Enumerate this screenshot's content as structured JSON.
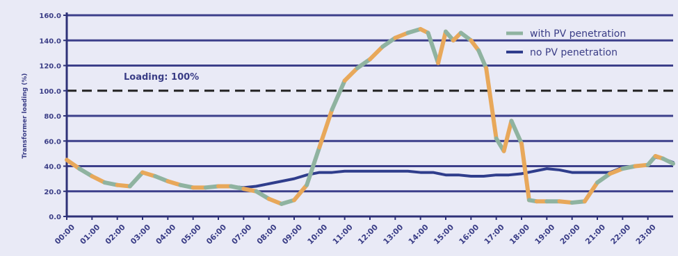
{
  "chart_data": {
    "type": "line",
    "title": "",
    "xlabel": "",
    "ylabel": "Transformer loading (%)",
    "ylim": [
      0,
      160
    ],
    "yticks": [
      "0.0",
      "20.0",
      "40.0",
      "60.0",
      "80.0",
      "100.0",
      "120.0",
      "140.0",
      "160.0"
    ],
    "xticks": [
      "00:00",
      "01:00",
      "02:00",
      "03:00",
      "04:00",
      "05:00",
      "06:00",
      "07:00",
      "08:00",
      "09:00",
      "10:00",
      "11:00",
      "12:00",
      "13:00",
      "14:00",
      "15:00",
      "16:00",
      "17:00",
      "18:00",
      "19:00",
      "20:00",
      "21:00",
      "22:00",
      "23:00"
    ],
    "grid": true,
    "legend_position": "top-right",
    "annotation": {
      "text": "Loading: 100%",
      "y": 100
    },
    "series": [
      {
        "name": "with PV penetration",
        "color": "#e8a85a",
        "color_alt": "#8fb3a0",
        "x": [
          0,
          0.5,
          1,
          1.5,
          2,
          2.5,
          3,
          3.5,
          4,
          4.5,
          5,
          5.5,
          6,
          6.5,
          7,
          7.5,
          8,
          8.5,
          9,
          9.5,
          10,
          10.5,
          11,
          11.5,
          12,
          12.5,
          13,
          13.5,
          14,
          14.3,
          14.7,
          15,
          15.3,
          15.6,
          16,
          16.3,
          16.6,
          17,
          17.3,
          17.6,
          18,
          18.3,
          18.6,
          19,
          19.5,
          20,
          20.5,
          21,
          21.5,
          22,
          22.5,
          23,
          23.3,
          23.6,
          24
        ],
        "y": [
          45,
          38,
          32,
          27,
          25,
          24,
          35,
          32,
          28,
          25,
          23,
          23,
          24,
          24,
          22,
          20,
          14,
          10,
          13,
          25,
          55,
          85,
          108,
          118,
          125,
          135,
          142,
          146,
          149,
          146,
          122,
          147,
          140,
          146,
          140,
          132,
          118,
          62,
          52,
          76,
          58,
          13,
          12,
          12,
          12,
          11,
          12,
          27,
          34,
          38,
          40,
          41,
          48,
          46,
          42
        ]
      },
      {
        "name": "no PV penetration",
        "color": "#2f3d8c",
        "x": [
          0,
          0.5,
          1,
          1.5,
          2,
          2.5,
          3,
          3.5,
          4,
          4.5,
          5,
          5.5,
          6,
          6.5,
          7,
          7.5,
          8,
          8.5,
          9,
          9.5,
          10,
          10.5,
          11,
          11.5,
          12,
          12.5,
          13,
          13.5,
          14,
          14.5,
          15,
          15.5,
          16,
          16.5,
          17,
          17.5,
          18,
          18.5,
          19,
          19.5,
          20,
          20.5,
          21,
          21.5,
          22,
          22.5,
          23,
          23.3,
          23.6,
          24
        ],
        "y": [
          45,
          38,
          32,
          27,
          25,
          24,
          35,
          32,
          28,
          25,
          23,
          23,
          24,
          24,
          23,
          24,
          26,
          28,
          30,
          33,
          35,
          35,
          36,
          36,
          36,
          36,
          36,
          36,
          35,
          35,
          33,
          33,
          32,
          32,
          33,
          33,
          34,
          36,
          38,
          37,
          35,
          35,
          35,
          35,
          39,
          40,
          41,
          47,
          46,
          43
        ]
      }
    ]
  }
}
